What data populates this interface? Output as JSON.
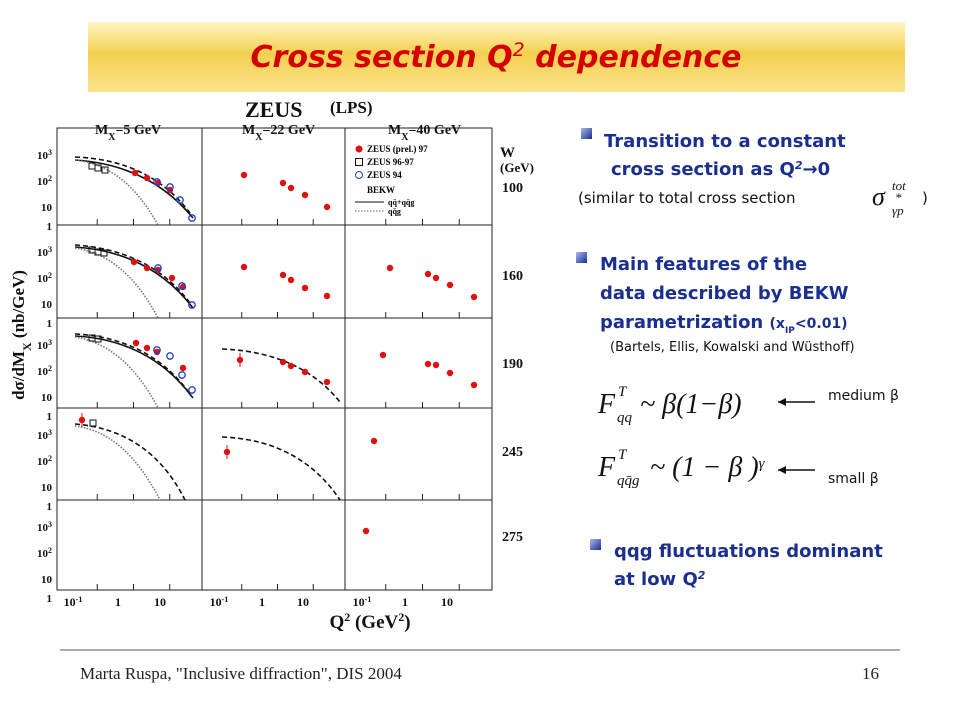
{
  "header": {
    "title": "Cross section Q",
    "title_sup": "2",
    "title_rest": " dependence"
  },
  "figure": {
    "experiment": "ZEUS",
    "selection": "(LPS)",
    "y_axis": {
      "label": "dσ/dM",
      "label_sub": "X",
      "label_rest": " (nb/GeV)",
      "ticks": [
        {
          "base": "10",
          "exp": "3"
        },
        {
          "base": "10",
          "exp": "2"
        },
        {
          "base": "10"
        },
        {
          "base": "1"
        }
      ]
    },
    "x_axis": {
      "label": "Q",
      "label_sup": "2",
      "label_mid": " (GeV",
      "label_sup2": "2",
      "label_end": ")",
      "ticks": [
        {
          "base": "10",
          "exp": "-1"
        },
        {
          "base": "1"
        },
        {
          "base": "10"
        }
      ]
    },
    "columns": [
      {
        "name": "M",
        "sub": "X",
        "rest": "=5 GeV"
      },
      {
        "name": "M",
        "sub": "X",
        "rest": "=22 GeV"
      },
      {
        "name": "M",
        "sub": "X",
        "rest": "=40 GeV"
      }
    ],
    "w_axis": {
      "label": "W",
      "unit": "(GeV)",
      "rows": [
        "100",
        "160",
        "190",
        "245",
        "275"
      ]
    },
    "legend": [
      "ZEUS (prel.) 97",
      "ZEUS 96-97",
      "ZEUS 94",
      "BEKW",
      "qq̄+qq̄g",
      "qq̄g"
    ]
  },
  "bullets": [
    {
      "line1": "Transition to a constant",
      "line2": "cross section as Q",
      "line2_sup": "2",
      "line2_end": "→0",
      "note": "(similar to total cross section",
      "note_symbol": "σ",
      "note_sup": "tot",
      "note_star": "*",
      "note_sub": "γp",
      "note_end": ")"
    },
    {
      "line1": "Main features of the",
      "line2": "data described by BEKW",
      "line3": "parametrization ",
      "line3_paren": "(x",
      "line3_sub": "IP",
      "line3_end": "<0.01)",
      "note": "(Bartels, Ellis, Kowalski and Wüsthoff)"
    },
    {
      "line1": "qqg fluctuations dominant",
      "line2": "at low Q",
      "line2_sup": "2"
    }
  ],
  "formulas": [
    {
      "symbol": "F",
      "sup": "T",
      "sub": "qq",
      "rhs": "~ β(1−β)",
      "label": "medium β"
    },
    {
      "symbol": "F",
      "sup": "T",
      "sub": "qq̄g",
      "rhs": "~ (1 − β )",
      "rhs_sup": "γ",
      "label": "small β"
    }
  ],
  "footer": {
    "citation": "Marta Ruspa, \"Inclusive diffraction\", DIS 2004",
    "page": "16"
  }
}
